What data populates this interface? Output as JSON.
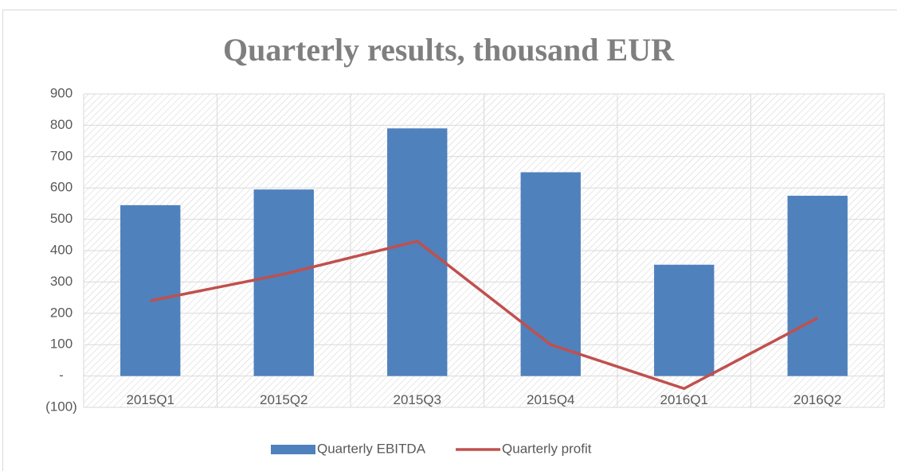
{
  "chart_data": {
    "type": "bar",
    "title": "Quarterly results, thousand EUR",
    "categories": [
      "2015Q1",
      "2015Q2",
      "2015Q3",
      "2015Q4",
      "2016Q1",
      "2016Q2"
    ],
    "series": [
      {
        "name": "Quarterly EBITDA",
        "kind": "bar",
        "color": "#4f81bd",
        "values": [
          545,
          595,
          790,
          650,
          355,
          575
        ]
      },
      {
        "name": "Quarterly profit",
        "kind": "line",
        "color": "#c0504d",
        "values": [
          240,
          325,
          430,
          100,
          -40,
          185
        ]
      }
    ],
    "ylim": [
      -100,
      900
    ],
    "yticks": [
      {
        "value": -100,
        "label": "(100)"
      },
      {
        "value": 0,
        "label": "-"
      },
      100,
      200,
      300,
      400,
      500,
      600,
      700,
      800,
      900
    ],
    "grid": true,
    "legend": "bottom"
  }
}
